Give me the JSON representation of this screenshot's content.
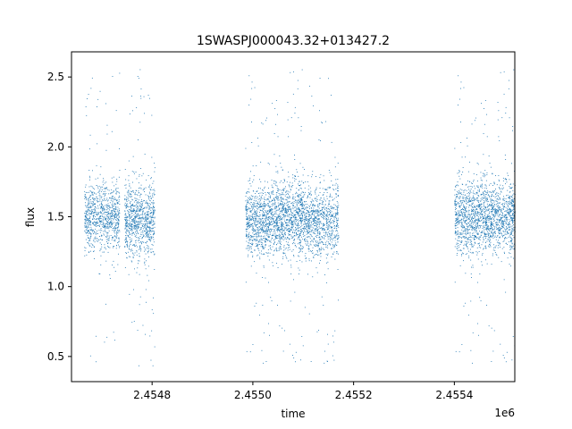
{
  "chart_data": {
    "type": "scatter",
    "title": "1SWASPJ000043.32+013427.2",
    "xlabel": "time",
    "ylabel": "flux",
    "x_offset_label": "1e6",
    "xlim": [
      2454640,
      2455520
    ],
    "ylim": [
      0.32,
      2.68
    ],
    "x_ticks": [
      2454800,
      2455000,
      2455200,
      2455400
    ],
    "x_tick_labels": [
      "2.4548",
      "2.4550",
      "2.4552",
      "2.4554"
    ],
    "y_ticks": [
      0.5,
      1.0,
      1.5,
      2.0,
      2.5
    ],
    "y_tick_labels": [
      "0.5",
      "1.0",
      "1.5",
      "2.0",
      "2.5"
    ],
    "grid": false,
    "marker_color": "#1f77b4",
    "series": [
      {
        "segments": [
          {
            "x_range": [
              2454665,
              2454735
            ],
            "center": 1.5,
            "spread": 0.12
          },
          {
            "x_range": [
              2454745,
              2454805
            ],
            "center": 1.47,
            "spread": 0.13
          },
          {
            "x_range": [
              2454985,
              2455045
            ],
            "center": 1.47,
            "spread": 0.12
          },
          {
            "x_range": [
              2455045,
              2455100
            ],
            "center": 1.5,
            "spread": 0.13
          },
          {
            "x_range": [
              2455100,
              2455170
            ],
            "center": 1.47,
            "spread": 0.13
          },
          {
            "x_range": [
              2455400,
              2455460
            ],
            "center": 1.5,
            "spread": 0.13
          },
          {
            "x_range": [
              2455460,
              2455520
            ],
            "center": 1.5,
            "spread": 0.12
          }
        ],
        "outlier_range": [
          0.43,
          2.56
        ]
      }
    ]
  }
}
